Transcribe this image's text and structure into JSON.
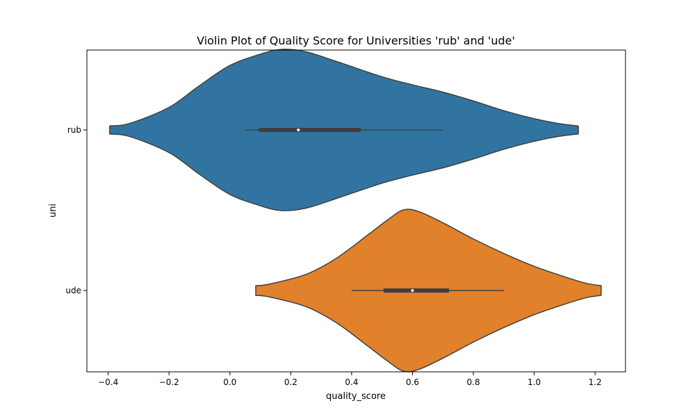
{
  "chart_data": {
    "type": "violin",
    "orientation": "horizontal",
    "title": "Violin Plot of Quality Score for Universities 'rub' and 'ude'",
    "xlabel": "quality_score",
    "ylabel": "uni",
    "xlim": [
      -0.47,
      1.3
    ],
    "xticks": [
      -0.4,
      -0.2,
      0.0,
      0.2,
      0.4,
      0.6,
      0.8,
      1.0,
      1.2
    ],
    "xtick_labels": [
      "−0.4",
      "−0.2",
      "0.0",
      "0.2",
      "0.4",
      "0.6",
      "0.8",
      "1.0",
      "1.2"
    ],
    "grid": false,
    "categories": [
      "rub",
      "ude"
    ],
    "series": [
      {
        "category": "rub",
        "color": "#3274a1",
        "range": [
          -0.395,
          1.145
        ],
        "density": [
          [
            -0.395,
            0.05
          ],
          [
            -0.33,
            0.08
          ],
          [
            -0.2,
            0.28
          ],
          [
            -0.1,
            0.55
          ],
          [
            0.0,
            0.8
          ],
          [
            0.1,
            0.94
          ],
          [
            0.17,
            1.0
          ],
          [
            0.25,
            0.97
          ],
          [
            0.35,
            0.85
          ],
          [
            0.5,
            0.66
          ],
          [
            0.6,
            0.56
          ],
          [
            0.7,
            0.47
          ],
          [
            0.8,
            0.36
          ],
          [
            0.9,
            0.24
          ],
          [
            1.0,
            0.14
          ],
          [
            1.08,
            0.08
          ],
          [
            1.145,
            0.05
          ]
        ],
        "whisker": [
          0.05,
          0.7
        ],
        "q1": 0.095,
        "median": 0.225,
        "q3": 0.43
      },
      {
        "category": "ude",
        "color": "#e1812c",
        "range": [
          0.085,
          1.22
        ],
        "density": [
          [
            0.085,
            0.06
          ],
          [
            0.13,
            0.08
          ],
          [
            0.25,
            0.2
          ],
          [
            0.35,
            0.4
          ],
          [
            0.45,
            0.68
          ],
          [
            0.52,
            0.88
          ],
          [
            0.57,
            1.0
          ],
          [
            0.62,
            0.98
          ],
          [
            0.7,
            0.84
          ],
          [
            0.8,
            0.64
          ],
          [
            0.9,
            0.46
          ],
          [
            1.0,
            0.3
          ],
          [
            1.1,
            0.17
          ],
          [
            1.17,
            0.09
          ],
          [
            1.22,
            0.06
          ]
        ],
        "whisker": [
          0.4,
          0.9
        ],
        "q1": 0.505,
        "median": 0.6,
        "q3": 0.72
      }
    ]
  }
}
